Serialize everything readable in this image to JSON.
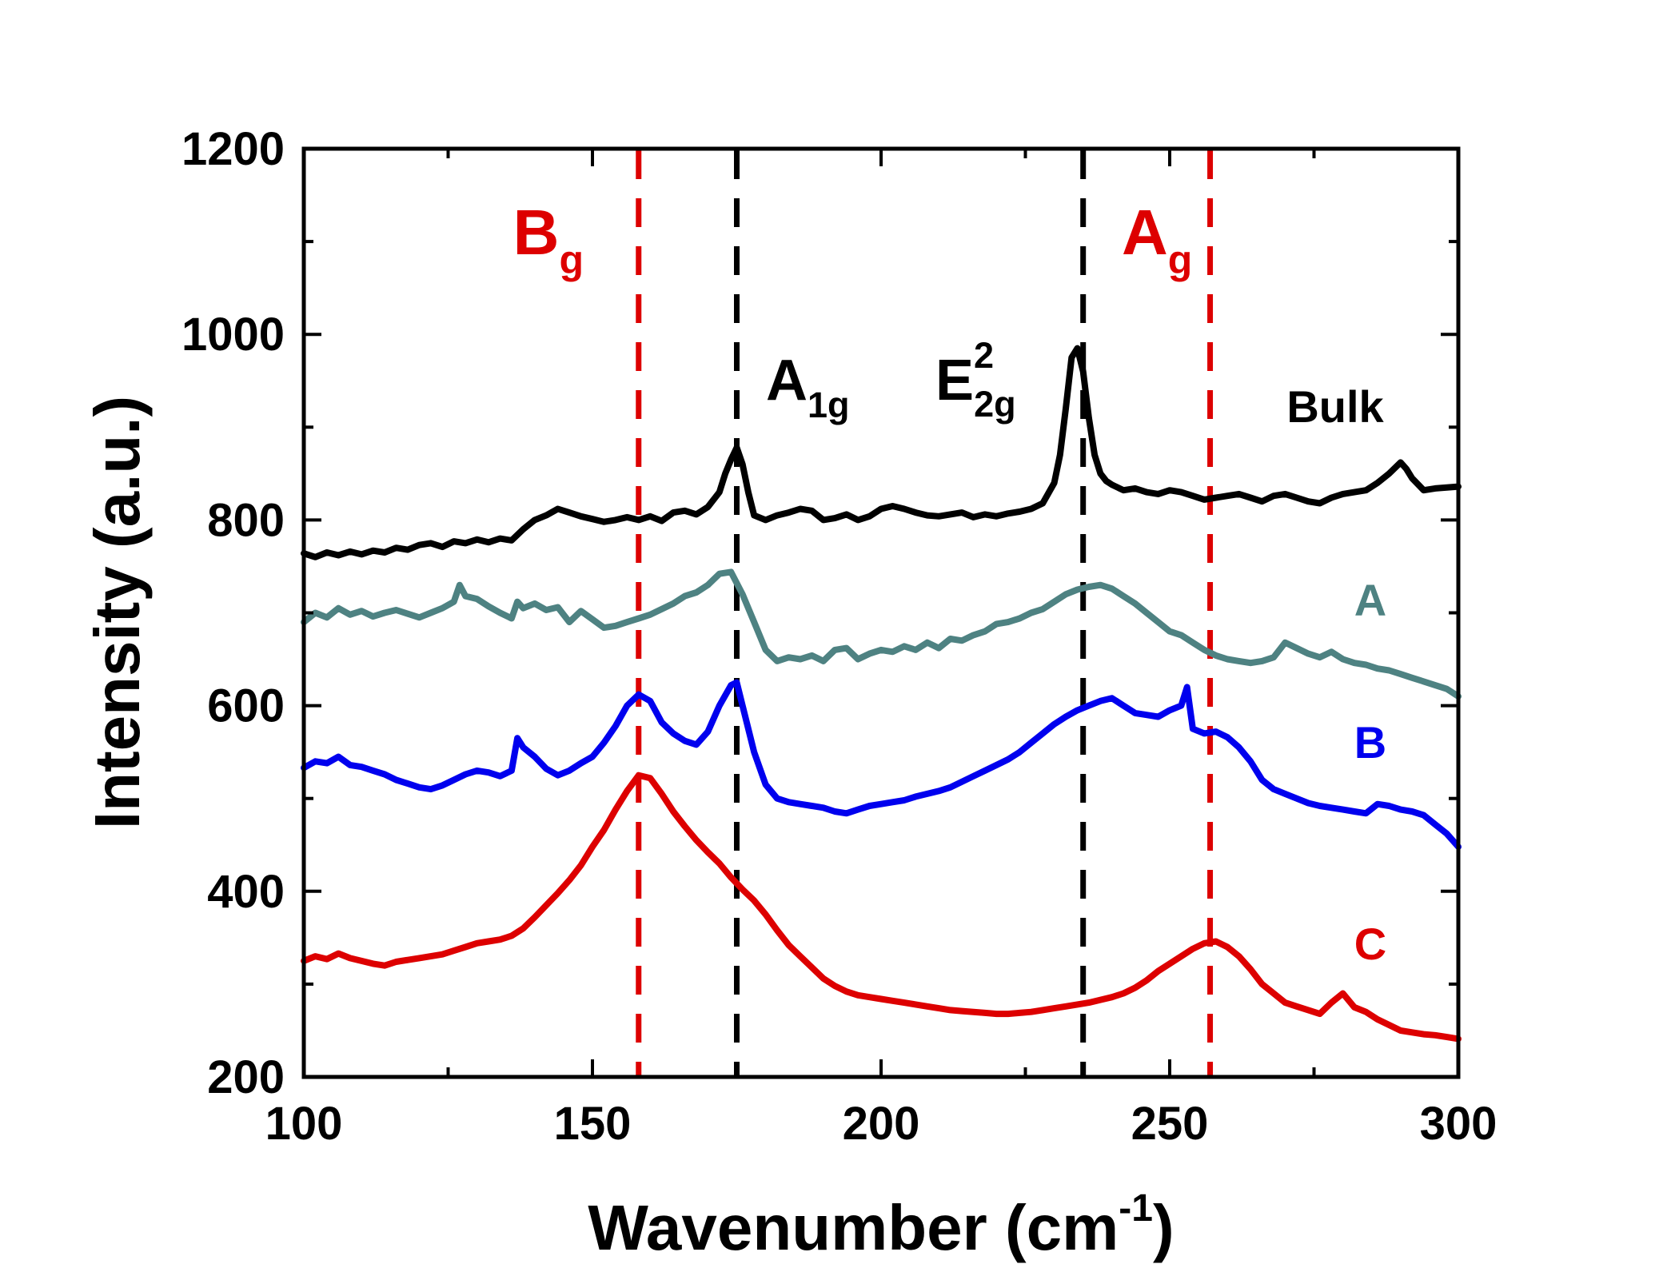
{
  "chart_data": {
    "type": "line",
    "title": "",
    "xlabel_main": "Wavenumber (cm",
    "xlabel_sup": "-1",
    "xlabel_close": ")",
    "ylabel": "Intensity (a.u.)",
    "xlim": [
      100,
      300
    ],
    "ylim": [
      200,
      1200
    ],
    "xticks": [
      100,
      150,
      200,
      250,
      300
    ],
    "yticks": [
      200,
      400,
      600,
      800,
      1000,
      1200
    ],
    "series": [
      {
        "name": "Bulk",
        "color": "#000000",
        "x": [
          100,
          102,
          104,
          106,
          108,
          110,
          112,
          114,
          116,
          118,
          120,
          122,
          124,
          126,
          128,
          130,
          132,
          134,
          136,
          138,
          140,
          142,
          144,
          146,
          148,
          150,
          152,
          154,
          156,
          158,
          160,
          162,
          164,
          166,
          168,
          170,
          172,
          173,
          174,
          175,
          176,
          177,
          178,
          180,
          182,
          184,
          186,
          188,
          190,
          192,
          194,
          196,
          198,
          200,
          202,
          204,
          206,
          208,
          210,
          212,
          214,
          216,
          218,
          220,
          222,
          224,
          226,
          228,
          230,
          231,
          232,
          233,
          234,
          235,
          236,
          237,
          238,
          239,
          240,
          242,
          244,
          246,
          248,
          250,
          252,
          254,
          256,
          258,
          260,
          262,
          264,
          266,
          268,
          270,
          272,
          274,
          276,
          278,
          280,
          282,
          284,
          286,
          288,
          290,
          291,
          292,
          294,
          296,
          298,
          300
        ],
        "y": [
          764,
          760,
          765,
          762,
          766,
          763,
          767,
          765,
          770,
          768,
          773,
          775,
          771,
          777,
          775,
          779,
          776,
          780,
          778,
          790,
          800,
          805,
          812,
          808,
          804,
          801,
          798,
          800,
          803,
          800,
          804,
          799,
          808,
          810,
          806,
          814,
          830,
          850,
          865,
          878,
          860,
          830,
          805,
          800,
          805,
          808,
          812,
          810,
          800,
          802,
          806,
          800,
          804,
          812,
          815,
          812,
          808,
          805,
          804,
          806,
          808,
          803,
          806,
          804,
          807,
          809,
          812,
          818,
          840,
          870,
          920,
          975,
          985,
          960,
          910,
          870,
          850,
          842,
          838,
          832,
          834,
          830,
          828,
          832,
          830,
          826,
          822,
          824,
          826,
          828,
          824,
          820,
          826,
          828,
          824,
          820,
          818,
          824,
          828,
          830,
          832,
          840,
          850,
          862,
          855,
          845,
          832,
          834,
          835,
          836
        ]
      },
      {
        "name": "A",
        "color": "#4e8282",
        "x": [
          100,
          102,
          104,
          106,
          108,
          110,
          112,
          114,
          116,
          118,
          120,
          122,
          124,
          126,
          127,
          128,
          130,
          132,
          134,
          136,
          137,
          138,
          140,
          142,
          144,
          146,
          148,
          150,
          152,
          154,
          156,
          158,
          160,
          162,
          164,
          166,
          168,
          170,
          172,
          174,
          176,
          178,
          180,
          182,
          184,
          186,
          188,
          190,
          192,
          194,
          196,
          198,
          200,
          202,
          204,
          206,
          208,
          210,
          212,
          214,
          216,
          218,
          220,
          222,
          224,
          226,
          228,
          230,
          232,
          234,
          236,
          238,
          240,
          242,
          244,
          246,
          248,
          250,
          252,
          254,
          256,
          258,
          260,
          262,
          264,
          266,
          268,
          270,
          272,
          274,
          276,
          278,
          280,
          282,
          284,
          286,
          288,
          290,
          292,
          294,
          296,
          298,
          300
        ],
        "y": [
          690,
          700,
          695,
          705,
          698,
          702,
          696,
          700,
          703,
          699,
          695,
          700,
          705,
          712,
          730,
          718,
          715,
          707,
          700,
          694,
          712,
          705,
          710,
          703,
          706,
          690,
          702,
          693,
          684,
          686,
          690,
          694,
          698,
          704,
          710,
          718,
          722,
          730,
          742,
          744,
          720,
          690,
          660,
          648,
          652,
          650,
          654,
          648,
          660,
          662,
          650,
          656,
          660,
          658,
          664,
          660,
          668,
          662,
          672,
          670,
          676,
          680,
          688,
          690,
          694,
          700,
          704,
          712,
          720,
          725,
          728,
          730,
          726,
          718,
          710,
          700,
          690,
          680,
          676,
          668,
          660,
          654,
          650,
          648,
          646,
          648,
          652,
          668,
          662,
          656,
          652,
          658,
          650,
          646,
          644,
          640,
          638,
          634,
          630,
          626,
          622,
          618,
          610
        ]
      },
      {
        "name": "B",
        "color": "#0000ee",
        "x": [
          100,
          102,
          104,
          106,
          108,
          110,
          112,
          114,
          116,
          118,
          120,
          122,
          124,
          126,
          128,
          130,
          132,
          134,
          136,
          137,
          138,
          140,
          142,
          144,
          146,
          148,
          150,
          152,
          154,
          156,
          158,
          160,
          162,
          164,
          166,
          168,
          170,
          172,
          174,
          175,
          176,
          178,
          180,
          182,
          184,
          186,
          188,
          190,
          192,
          194,
          196,
          198,
          200,
          202,
          204,
          206,
          208,
          210,
          212,
          214,
          216,
          218,
          220,
          222,
          224,
          226,
          228,
          230,
          232,
          234,
          236,
          238,
          240,
          242,
          244,
          246,
          248,
          250,
          252,
          253,
          254,
          256,
          258,
          260,
          262,
          264,
          266,
          268,
          270,
          272,
          274,
          276,
          278,
          280,
          282,
          284,
          286,
          288,
          290,
          292,
          294,
          296,
          298,
          300
        ],
        "y": [
          533,
          540,
          538,
          545,
          536,
          534,
          530,
          526,
          520,
          516,
          512,
          510,
          514,
          520,
          526,
          530,
          528,
          524,
          530,
          565,
          555,
          545,
          532,
          525,
          530,
          538,
          545,
          560,
          578,
          600,
          612,
          605,
          582,
          570,
          562,
          558,
          572,
          600,
          622,
          625,
          600,
          550,
          515,
          500,
          496,
          494,
          492,
          490,
          486,
          484,
          488,
          492,
          494,
          496,
          498,
          502,
          505,
          508,
          512,
          518,
          524,
          530,
          536,
          542,
          550,
          560,
          570,
          580,
          588,
          595,
          600,
          605,
          608,
          600,
          592,
          590,
          588,
          595,
          600,
          620,
          575,
          570,
          572,
          566,
          555,
          540,
          520,
          510,
          505,
          500,
          495,
          492,
          490,
          488,
          486,
          484,
          494,
          492,
          488,
          486,
          482,
          472,
          462,
          448
        ]
      },
      {
        "name": "C",
        "color": "#dd0000",
        "x": [
          100,
          102,
          104,
          106,
          108,
          110,
          112,
          114,
          116,
          118,
          120,
          122,
          124,
          126,
          128,
          130,
          132,
          134,
          136,
          138,
          140,
          142,
          144,
          146,
          148,
          150,
          152,
          154,
          156,
          158,
          160,
          162,
          164,
          166,
          168,
          170,
          172,
          174,
          176,
          178,
          180,
          182,
          184,
          186,
          188,
          190,
          192,
          194,
          196,
          198,
          200,
          202,
          204,
          206,
          208,
          210,
          212,
          214,
          216,
          218,
          220,
          222,
          224,
          226,
          228,
          230,
          232,
          234,
          236,
          238,
          240,
          242,
          244,
          246,
          248,
          250,
          252,
          254,
          256,
          258,
          260,
          262,
          264,
          266,
          268,
          270,
          272,
          274,
          276,
          278,
          280,
          282,
          284,
          286,
          288,
          290,
          292,
          294,
          296,
          298,
          300
        ],
        "y": [
          325,
          330,
          327,
          333,
          328,
          325,
          322,
          320,
          324,
          326,
          328,
          330,
          332,
          336,
          340,
          344,
          346,
          348,
          352,
          360,
          372,
          385,
          398,
          412,
          428,
          448,
          466,
          488,
          508,
          525,
          522,
          505,
          486,
          470,
          455,
          442,
          430,
          415,
          402,
          390,
          375,
          358,
          342,
          330,
          318,
          306,
          298,
          292,
          288,
          286,
          284,
          282,
          280,
          278,
          276,
          274,
          272,
          271,
          270,
          269,
          268,
          268,
          269,
          270,
          272,
          274,
          276,
          278,
          280,
          283,
          286,
          290,
          296,
          304,
          314,
          322,
          330,
          338,
          344,
          346,
          340,
          330,
          316,
          300,
          290,
          280,
          276,
          272,
          268,
          280,
          290,
          275,
          270,
          262,
          256,
          250,
          248,
          246,
          245,
          243,
          241
        ]
      }
    ],
    "series_labels": [
      {
        "text": "Bulk",
        "color": "#000000"
      },
      {
        "text": "A",
        "color": "#4e8282"
      },
      {
        "text": "B",
        "color": "#0000ee"
      },
      {
        "text": "C",
        "color": "#dd0000"
      }
    ],
    "reference_lines": [
      {
        "x": 158,
        "color": "#dd0000",
        "label_main": "B",
        "label_sub": "g",
        "label_sup": ""
      },
      {
        "x": 175,
        "color": "#000000",
        "label_main": "A",
        "label_sub": "1g",
        "label_sup": ""
      },
      {
        "x": 235,
        "color": "#000000",
        "label_main": "E",
        "label_sub": "2g",
        "label_sup": "2"
      },
      {
        "x": 257,
        "color": "#dd0000",
        "label_main": "A",
        "label_sub": "g",
        "label_sup": ""
      }
    ]
  }
}
